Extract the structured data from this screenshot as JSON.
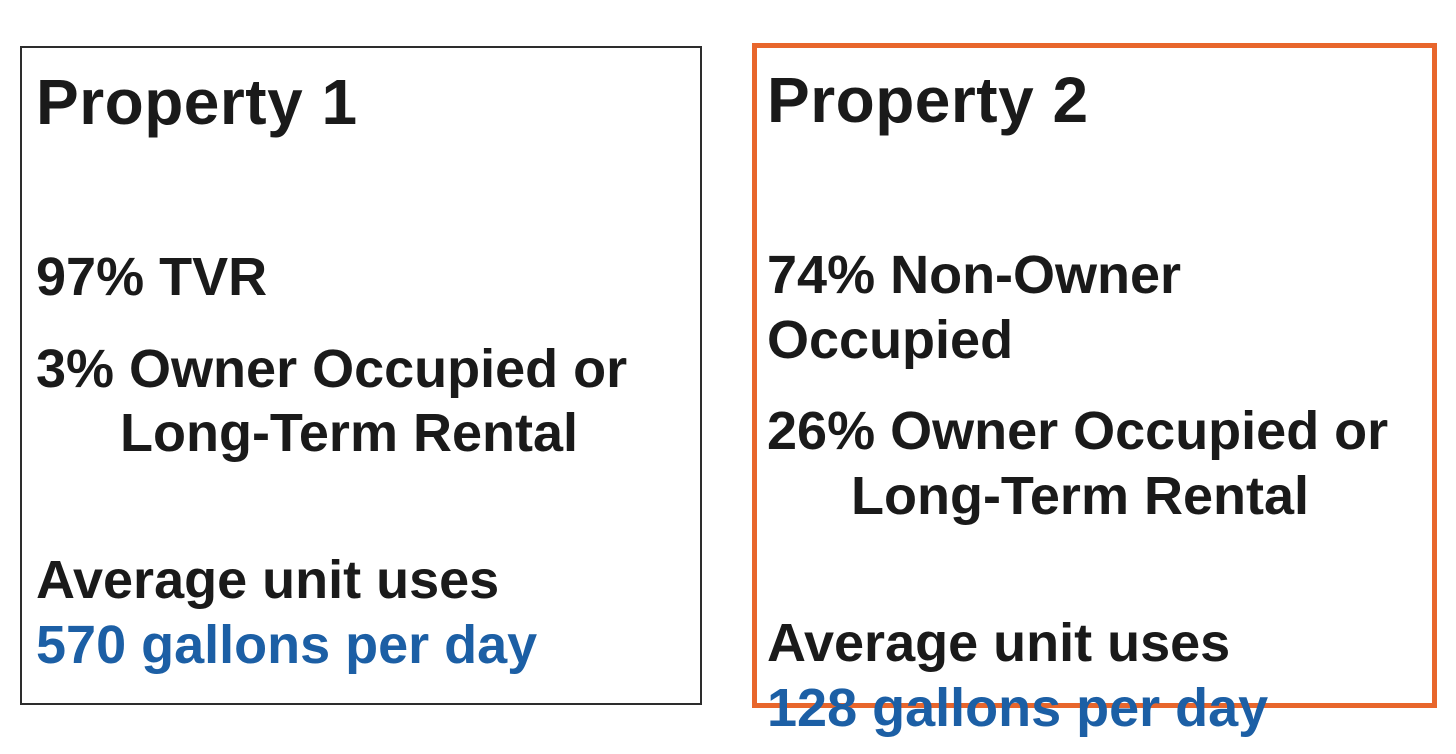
{
  "page": {
    "background": "#ffffff"
  },
  "colors": {
    "text_black": "#1a1a1a",
    "usage_value_blue": "#1c5fa5",
    "card1_border_black": "#2d2d2d",
    "card2_border_orange": "#e8662c"
  },
  "cards": [
    {
      "title": "Property 1",
      "stat_primary": "97% TVR",
      "stat_secondary_line1": "3% Owner Occupied or",
      "stat_secondary_line2": "Long-Term Rental",
      "usage_label": "Average unit uses",
      "usage_value": "570 gallons per day"
    },
    {
      "title": "Property 2",
      "stat_primary": "74% Non-Owner Occupied",
      "stat_secondary_line1": "26% Owner Occupied or",
      "stat_secondary_line2": "Long-Term Rental",
      "usage_label": "Average unit uses",
      "usage_value": "128 gallons per day"
    }
  ]
}
